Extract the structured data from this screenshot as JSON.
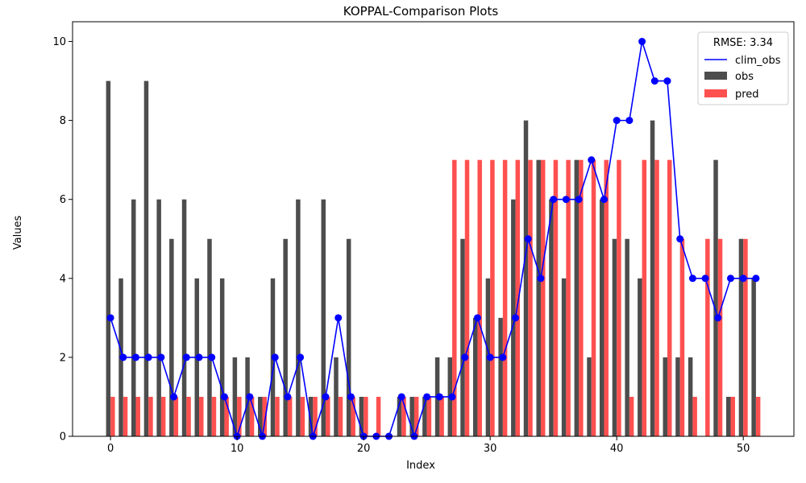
{
  "chart_data": {
    "type": "bar",
    "title": "KOPPAL-Comparison Plots",
    "xlabel": "Index",
    "ylabel": "Values",
    "xlim": [
      -3,
      54
    ],
    "ylim": [
      0,
      10.5
    ],
    "xticks": [
      0,
      10,
      20,
      30,
      40,
      50
    ],
    "yticks": [
      0,
      2,
      4,
      6,
      8,
      10
    ],
    "legend": {
      "title": "RMSE: 3.34",
      "position": "top-right"
    },
    "x": [
      0,
      1,
      2,
      3,
      4,
      5,
      6,
      7,
      8,
      9,
      10,
      11,
      12,
      13,
      14,
      15,
      16,
      17,
      18,
      19,
      20,
      21,
      22,
      23,
      24,
      25,
      26,
      27,
      28,
      29,
      30,
      31,
      32,
      33,
      34,
      35,
      36,
      37,
      38,
      39,
      40,
      41,
      42,
      43,
      44,
      45,
      46,
      47,
      48,
      49,
      50,
      51
    ],
    "series": [
      {
        "name": "clim_obs",
        "kind": "line",
        "color": "#0000ff",
        "values": [
          3,
          2,
          2,
          2,
          2,
          1,
          2,
          2,
          2,
          1,
          0,
          1,
          0,
          2,
          1,
          2,
          0,
          1,
          3,
          1,
          0,
          0,
          0,
          1,
          0,
          1,
          1,
          1,
          2,
          3,
          2,
          2,
          3,
          5,
          4,
          6,
          6,
          6,
          7,
          6,
          8,
          8,
          10,
          9,
          9,
          5,
          4,
          4,
          3,
          4,
          4,
          4
        ]
      },
      {
        "name": "obs",
        "kind": "bar",
        "color": "#4d4d4d",
        "values": [
          9,
          4,
          6,
          9,
          6,
          5,
          6,
          4,
          5,
          4,
          2,
          2,
          1,
          4,
          5,
          6,
          1,
          6,
          2,
          5,
          1,
          0,
          0,
          1,
          1,
          1,
          2,
          2,
          5,
          3,
          4,
          3,
          6,
          8,
          7,
          6,
          4,
          7,
          2,
          6,
          5,
          5,
          4,
          8,
          2,
          2,
          2,
          0,
          7,
          1,
          5,
          4
        ]
      },
      {
        "name": "pred",
        "kind": "bar",
        "color": "#ff5050",
        "values": [
          1,
          1,
          1,
          1,
          1,
          1,
          1,
          1,
          1,
          1,
          1,
          1,
          1,
          1,
          1,
          1,
          1,
          1,
          1,
          1,
          1,
          1,
          0,
          1,
          1,
          1,
          1,
          7,
          7,
          7,
          7,
          7,
          7,
          7,
          7,
          7,
          7,
          7,
          7,
          7,
          7,
          1,
          7,
          7,
          7,
          5,
          1,
          5,
          5,
          1,
          5,
          1
        ]
      }
    ]
  }
}
